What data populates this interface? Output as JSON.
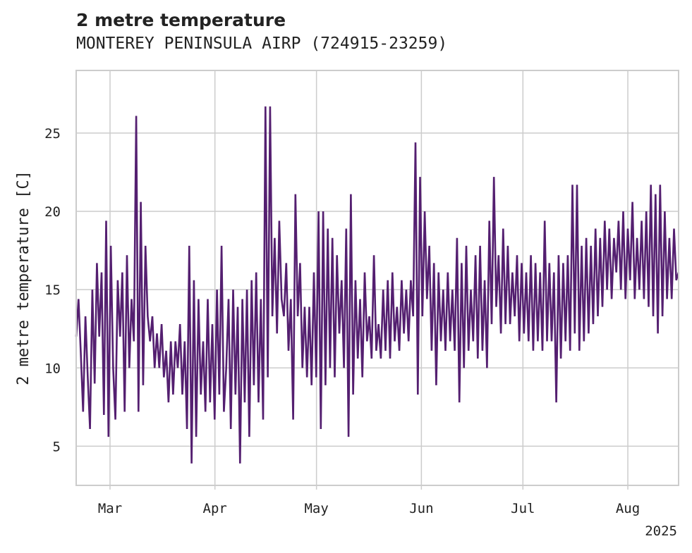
{
  "chart_data": {
    "type": "line",
    "title": "2 metre temperature",
    "subtitle": "MONTEREY PENINSULA AIRP (724915-23259)",
    "xlabel": "",
    "ylabel": "2 metre temperature [C]",
    "x_start": "2025-02-19",
    "x_end": "2025-08-16",
    "xlim": [
      "2025-02-19",
      "2025-08-16"
    ],
    "ylim": [
      2.5,
      29
    ],
    "x_ticks": [
      {
        "date": "2025-03-01",
        "label": "Mar"
      },
      {
        "date": "2025-04-01",
        "label": "Apr"
      },
      {
        "date": "2025-05-01",
        "label": "May"
      },
      {
        "date": "2025-06-01",
        "label": "Jun"
      },
      {
        "date": "2025-07-01",
        "label": "Jul"
      },
      {
        "date": "2025-08-01",
        "label": "Aug"
      }
    ],
    "x_year_label": "2025",
    "y_ticks": [
      5,
      10,
      15,
      20,
      25
    ],
    "grid": true,
    "line_color": "#541f70",
    "series": [
      {
        "values": [
          [
            12.0,
            14.4,
            11.0,
            7.2,
            13.3,
            9.4,
            6.1,
            15.0,
            9.0,
            16.7,
            12.0
          ],
          [
            16.1,
            7.0,
            19.4,
            5.6,
            17.8,
            10.0,
            6.7,
            15.6,
            12.0,
            16.1,
            7.2
          ],
          [
            17.2,
            10.0,
            14.4,
            11.7,
            26.1,
            7.2,
            20.6,
            8.9,
            17.8,
            13.3,
            11.7
          ],
          [
            13.3,
            10.0,
            12.2,
            10.0,
            12.8,
            9.4,
            11.1,
            7.8,
            11.7,
            8.3,
            11.7
          ],
          [
            10.0,
            12.8,
            8.3,
            11.7,
            6.1,
            17.8,
            3.9,
            15.6,
            5.6,
            14.4,
            8.3
          ],
          [
            11.7,
            7.2,
            14.4,
            7.8,
            12.8,
            6.7,
            15.0,
            8.3,
            17.8,
            7.2,
            10.0
          ],
          [
            14.4,
            6.1,
            15.0,
            8.3,
            13.9,
            3.9,
            14.4,
            7.8,
            15.0,
            5.6,
            15.6
          ],
          [
            8.9,
            16.1,
            7.8,
            14.4,
            6.7,
            26.7,
            9.4,
            26.7,
            13.3,
            18.3,
            12.2
          ],
          [
            19.4,
            14.4,
            13.3,
            16.7,
            11.1,
            14.4,
            6.7,
            21.1,
            13.3,
            16.7,
            10.0
          ],
          [
            13.9,
            9.4,
            13.9,
            8.9,
            16.1,
            9.4,
            20.0,
            6.1,
            20.0,
            8.9,
            18.9
          ],
          [
            10.0,
            18.3,
            9.4,
            17.2,
            12.2,
            15.6,
            10.0,
            18.9,
            5.6,
            21.1,
            8.3
          ],
          [
            15.6,
            10.6,
            14.4,
            9.4,
            16.1,
            11.7,
            13.3,
            10.6,
            17.2,
            11.1,
            12.8
          ],
          [
            10.6,
            15.0,
            11.1,
            15.6,
            10.6,
            16.1,
            11.7,
            13.9,
            11.1,
            15.6,
            12.2
          ],
          [
            15.0,
            11.7,
            15.6,
            13.3,
            24.4,
            8.3,
            22.2,
            13.3,
            20.0,
            14.4,
            17.8
          ],
          [
            11.1,
            16.7,
            8.9,
            16.1,
            11.7,
            15.0,
            11.1,
            16.1,
            11.7,
            15.0,
            11.1
          ],
          [
            18.3,
            7.8,
            16.7,
            10.0,
            17.8,
            11.1,
            15.0,
            11.7,
            17.2,
            10.6,
            17.8
          ],
          [
            11.1,
            15.6,
            10.0,
            19.4,
            12.8,
            22.2,
            13.9,
            17.2,
            12.2,
            18.9,
            12.8
          ],
          [
            17.8,
            12.8,
            16.1,
            13.3,
            17.2,
            11.7,
            16.7,
            12.2,
            16.1,
            11.7,
            17.2
          ],
          [
            11.1,
            16.7,
            11.7,
            16.1,
            11.1,
            19.4,
            11.7,
            16.7,
            11.7,
            16.1,
            7.8
          ],
          [
            17.2,
            10.6,
            16.7,
            11.7,
            17.2,
            11.1,
            21.7,
            12.2,
            21.7,
            11.1,
            17.8
          ],
          [
            11.7,
            18.3,
            12.2,
            17.8,
            12.8,
            18.9,
            13.3,
            18.3,
            13.9,
            19.4,
            15.0
          ],
          [
            18.9,
            14.4,
            18.3,
            16.1,
            19.4,
            15.0,
            20.0,
            14.4,
            18.9,
            15.6,
            20.6
          ],
          [
            14.4,
            18.3,
            15.0,
            19.4,
            14.4,
            20.0,
            13.9,
            21.7,
            13.3,
            21.1,
            12.2
          ],
          [
            21.7,
            13.3,
            20.0,
            14.4,
            18.3,
            14.4,
            18.9,
            15.6,
            16.1
          ]
        ]
      }
    ]
  }
}
